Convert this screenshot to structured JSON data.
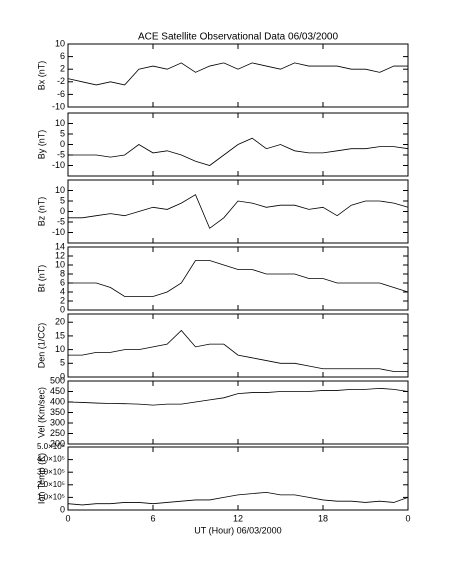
{
  "chart_data": [
    {
      "type": "line",
      "title": "ACE Satellite Observational Data   06/03/2000",
      "ylabel": "Bx (nT)",
      "color": "#000000",
      "x": [
        0,
        1,
        2,
        3,
        4,
        5,
        6,
        7,
        8,
        9,
        10,
        11,
        12,
        13,
        14,
        15,
        16,
        17,
        18,
        19,
        20,
        21,
        22,
        23,
        24
      ],
      "values": [
        -1,
        -2,
        -3,
        -2,
        -3,
        2,
        3,
        2,
        4,
        1,
        3,
        4,
        2,
        4,
        3,
        2,
        4,
        3,
        3,
        3,
        2,
        2,
        1,
        3,
        3
      ],
      "ylim": [
        -10,
        10
      ],
      "yticks": [
        -10,
        -6,
        -2,
        2,
        6,
        10
      ]
    },
    {
      "type": "line",
      "ylabel": "By (nT)",
      "color": "#000000",
      "x": [
        0,
        1,
        2,
        3,
        4,
        5,
        6,
        7,
        8,
        9,
        10,
        11,
        12,
        13,
        14,
        15,
        16,
        17,
        18,
        19,
        20,
        21,
        22,
        23,
        24
      ],
      "values": [
        -5,
        -5,
        -5,
        -6,
        -5,
        0,
        -4,
        -3,
        -5,
        -8,
        -10,
        -5,
        0,
        3,
        -2,
        0,
        -3,
        -4,
        -4,
        -3,
        -2,
        -2,
        -1,
        -1,
        -2
      ],
      "ylim": [
        -15,
        15
      ],
      "yticks": [
        -10,
        -5,
        0,
        5,
        10
      ]
    },
    {
      "type": "line",
      "ylabel": "Bz (nT)",
      "color": "#000000",
      "x": [
        0,
        1,
        2,
        3,
        4,
        5,
        6,
        7,
        8,
        9,
        10,
        11,
        12,
        13,
        14,
        15,
        16,
        17,
        18,
        19,
        20,
        21,
        22,
        23,
        24
      ],
      "values": [
        -3,
        -3,
        -2,
        -1,
        -2,
        0,
        2,
        1,
        4,
        8,
        -8,
        -3,
        5,
        4,
        2,
        3,
        3,
        1,
        2,
        -2,
        3,
        5,
        5,
        4,
        2
      ],
      "ylim": [
        -15,
        15
      ],
      "yticks": [
        -10,
        -5,
        0,
        5,
        10
      ]
    },
    {
      "type": "line",
      "ylabel": "Bt (nT)",
      "color": "#000000",
      "x": [
        0,
        1,
        2,
        3,
        4,
        5,
        6,
        7,
        8,
        9,
        10,
        11,
        12,
        13,
        14,
        15,
        16,
        17,
        18,
        19,
        20,
        21,
        22,
        23,
        24
      ],
      "values": [
        6,
        6,
        6,
        5,
        3,
        3,
        3,
        4,
        6,
        11,
        11,
        10,
        9,
        9,
        8,
        8,
        8,
        7,
        7,
        6,
        6,
        6,
        6,
        5,
        4
      ],
      "ylim": [
        0,
        14
      ],
      "yticks": [
        0,
        2,
        4,
        6,
        8,
        10,
        12,
        14
      ]
    },
    {
      "type": "line",
      "ylabel": "Den (1/CC)",
      "color": "#000000",
      "x": [
        0,
        1,
        2,
        3,
        4,
        5,
        6,
        7,
        8,
        9,
        10,
        11,
        12,
        13,
        14,
        15,
        16,
        17,
        18,
        19,
        20,
        21,
        22,
        23,
        24
      ],
      "values": [
        8,
        8,
        9,
        9,
        10,
        10,
        11,
        12,
        17,
        11,
        12,
        12,
        8,
        7,
        6,
        5,
        5,
        4,
        3,
        3,
        3,
        3,
        3,
        2,
        2
      ],
      "ylim": [
        0,
        23
      ],
      "yticks": [
        0,
        5,
        10,
        15,
        20
      ]
    },
    {
      "type": "line",
      "ylabel": "Vel (Km/sec)",
      "color": "#000000",
      "x": [
        0,
        1,
        2,
        3,
        4,
        5,
        6,
        7,
        8,
        9,
        10,
        11,
        12,
        13,
        14,
        15,
        16,
        17,
        18,
        19,
        20,
        21,
        22,
        23,
        24
      ],
      "values": [
        400,
        398,
        395,
        393,
        392,
        390,
        385,
        390,
        390,
        400,
        410,
        420,
        440,
        445,
        445,
        450,
        450,
        450,
        455,
        455,
        460,
        460,
        465,
        460,
        450
      ],
      "ylim": [
        200,
        500
      ],
      "yticks": [
        200,
        250,
        300,
        350,
        400,
        450,
        500
      ]
    },
    {
      "type": "line",
      "ylabel": "Ion Temp (K)",
      "xlabel": "UT (Hour)   06/03/2000",
      "color": "#000000",
      "x": [
        0,
        1,
        2,
        3,
        4,
        5,
        6,
        7,
        8,
        9,
        10,
        11,
        12,
        13,
        14,
        15,
        16,
        17,
        18,
        19,
        20,
        21,
        22,
        23,
        24
      ],
      "values": [
        50000,
        40000,
        50000,
        50000,
        60000,
        60000,
        50000,
        60000,
        70000,
        80000,
        80000,
        100000,
        120000,
        130000,
        140000,
        120000,
        120000,
        100000,
        80000,
        70000,
        70000,
        60000,
        70000,
        60000,
        100000
      ],
      "ylim": [
        0,
        500000
      ],
      "yticks": [
        0,
        {
          "value": 100000,
          "label": "1.0×10⁵"
        },
        {
          "value": 200000,
          "label": "2.0×10⁵"
        },
        {
          "value": 300000,
          "label": "3.0×10⁵"
        },
        {
          "value": 400000,
          "label": "4.0×10⁵"
        },
        {
          "value": 500000,
          "label": "5.0×10⁵"
        }
      ],
      "xlim": [
        0,
        24
      ],
      "xticks": [
        0,
        6,
        12,
        18,
        {
          "value": 24,
          "label": "0"
        }
      ]
    }
  ]
}
